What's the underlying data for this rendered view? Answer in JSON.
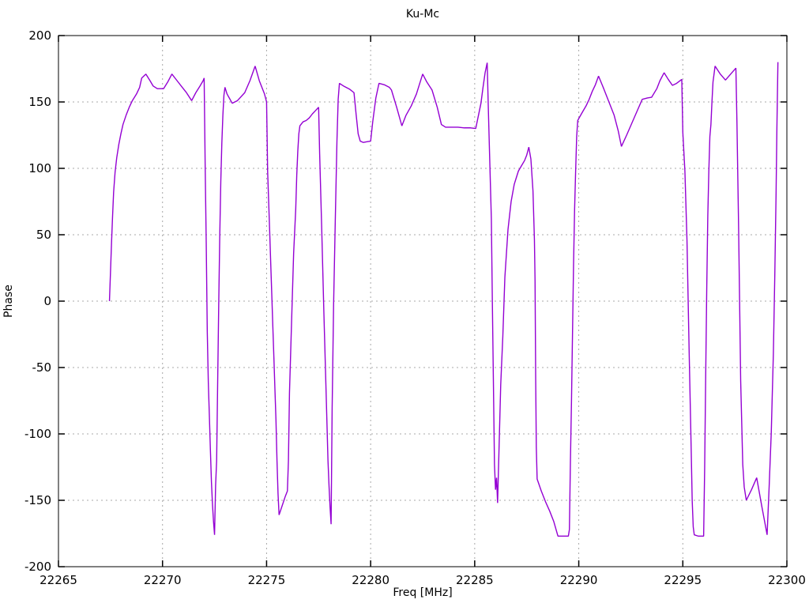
{
  "chart_data": {
    "type": "line",
    "title": "Ku-Mc",
    "xlabel": "Freq [MHz]",
    "ylabel": "Phase",
    "xlim": [
      22265,
      22300
    ],
    "ylim": [
      -200,
      200
    ],
    "xticks": [
      22265,
      22270,
      22275,
      22280,
      22285,
      22290,
      22295,
      22300
    ],
    "yticks": [
      -200,
      -150,
      -100,
      -50,
      0,
      50,
      100,
      150,
      200
    ],
    "grid": true,
    "legend_position": "none",
    "line_color": "#9400d3",
    "grid_color": "#a8a8a8",
    "border_color": "#000000",
    "series": [
      {
        "name": "Ku-Mc",
        "points": [
          [
            22267.45,
            0
          ],
          [
            22267.5,
            22
          ],
          [
            22267.55,
            44
          ],
          [
            22267.6,
            64
          ],
          [
            22267.65,
            82
          ],
          [
            22267.72,
            97
          ],
          [
            22267.8,
            108
          ],
          [
            22267.9,
            118
          ],
          [
            22268.0,
            126
          ],
          [
            22268.1,
            133
          ],
          [
            22268.25,
            140
          ],
          [
            22268.4,
            146
          ],
          [
            22268.55,
            151
          ],
          [
            22268.75,
            156
          ],
          [
            22268.9,
            161
          ],
          [
            22269.0,
            168
          ],
          [
            22269.2,
            171
          ],
          [
            22269.4,
            166
          ],
          [
            22269.55,
            162
          ],
          [
            22269.75,
            160
          ],
          [
            22270.05,
            160
          ],
          [
            22270.25,
            165
          ],
          [
            22270.45,
            171
          ],
          [
            22270.7,
            166
          ],
          [
            22270.95,
            161
          ],
          [
            22271.15,
            157
          ],
          [
            22271.4,
            151
          ],
          [
            22271.6,
            157
          ],
          [
            22271.8,
            162
          ],
          [
            22271.95,
            166
          ],
          [
            22272.0,
            168
          ],
          [
            22272.05,
            101
          ],
          [
            22272.1,
            44
          ],
          [
            22272.15,
            -23
          ],
          [
            22272.2,
            -61
          ],
          [
            22272.25,
            -86
          ],
          [
            22272.3,
            -112
          ],
          [
            22272.35,
            -136
          ],
          [
            22272.4,
            -153
          ],
          [
            22272.45,
            -166
          ],
          [
            22272.5,
            -176
          ],
          [
            22272.55,
            -139
          ],
          [
            22272.6,
            -120
          ],
          [
            22272.65,
            -61
          ],
          [
            22272.7,
            -3
          ],
          [
            22272.75,
            49
          ],
          [
            22272.8,
            90
          ],
          [
            22272.85,
            119
          ],
          [
            22272.9,
            140
          ],
          [
            22272.95,
            155
          ],
          [
            22273.0,
            161
          ],
          [
            22273.1,
            156
          ],
          [
            22273.35,
            149
          ],
          [
            22273.6,
            151
          ],
          [
            22273.95,
            157
          ],
          [
            22274.2,
            166
          ],
          [
            22274.45,
            177
          ],
          [
            22274.65,
            166
          ],
          [
            22274.9,
            156
          ],
          [
            22275.0,
            150
          ],
          [
            22275.05,
            98
          ],
          [
            22275.1,
            75
          ],
          [
            22275.15,
            52
          ],
          [
            22275.2,
            28
          ],
          [
            22275.25,
            5
          ],
          [
            22275.3,
            -19
          ],
          [
            22275.35,
            -42
          ],
          [
            22275.4,
            -66
          ],
          [
            22275.45,
            -89
          ],
          [
            22275.5,
            -120
          ],
          [
            22275.55,
            -145
          ],
          [
            22275.6,
            -161
          ],
          [
            22275.75,
            -154
          ],
          [
            22275.9,
            -147
          ],
          [
            22276.0,
            -143
          ],
          [
            22276.05,
            -120
          ],
          [
            22276.1,
            -69
          ],
          [
            22276.2,
            -16
          ],
          [
            22276.3,
            36
          ],
          [
            22276.4,
            69
          ],
          [
            22276.45,
            95
          ],
          [
            22276.5,
            113
          ],
          [
            22276.55,
            126
          ],
          [
            22276.6,
            132
          ],
          [
            22276.75,
            135
          ],
          [
            22276.9,
            136
          ],
          [
            22277.05,
            138
          ],
          [
            22277.2,
            141
          ],
          [
            22277.35,
            143.5
          ],
          [
            22277.5,
            146
          ],
          [
            22277.55,
            111
          ],
          [
            22277.65,
            54
          ],
          [
            22277.75,
            -7
          ],
          [
            22277.85,
            -63
          ],
          [
            22277.95,
            -120
          ],
          [
            22278.0,
            -139
          ],
          [
            22278.05,
            -155
          ],
          [
            22278.1,
            -168
          ],
          [
            22278.15,
            -81
          ],
          [
            22278.22,
            -3
          ],
          [
            22278.3,
            60
          ],
          [
            22278.38,
            120
          ],
          [
            22278.44,
            152
          ],
          [
            22278.5,
            164
          ],
          [
            22278.7,
            162
          ],
          [
            22279.0,
            159.5
          ],
          [
            22279.2,
            157
          ],
          [
            22279.3,
            141
          ],
          [
            22279.4,
            126
          ],
          [
            22279.5,
            120.5
          ],
          [
            22279.65,
            119.5
          ],
          [
            22279.8,
            120
          ],
          [
            22280.0,
            120.5
          ],
          [
            22280.1,
            135
          ],
          [
            22280.25,
            153
          ],
          [
            22280.4,
            164
          ],
          [
            22280.65,
            163
          ],
          [
            22280.9,
            161
          ],
          [
            22281.0,
            159
          ],
          [
            22281.25,
            146
          ],
          [
            22281.5,
            132
          ],
          [
            22281.7,
            140
          ],
          [
            22281.95,
            147
          ],
          [
            22282.2,
            156
          ],
          [
            22282.5,
            171
          ],
          [
            22282.7,
            165
          ],
          [
            22282.95,
            159
          ],
          [
            22283.2,
            146
          ],
          [
            22283.4,
            133
          ],
          [
            22283.6,
            131
          ],
          [
            22283.9,
            131
          ],
          [
            22284.2,
            131
          ],
          [
            22284.5,
            130.5
          ],
          [
            22284.8,
            130.5
          ],
          [
            22285.05,
            130
          ],
          [
            22285.3,
            149
          ],
          [
            22285.4,
            161
          ],
          [
            22285.5,
            172
          ],
          [
            22285.6,
            179.5
          ],
          [
            22285.65,
            148
          ],
          [
            22285.7,
            119
          ],
          [
            22285.8,
            62
          ],
          [
            22285.85,
            -3
          ],
          [
            22285.9,
            -63
          ],
          [
            22285.95,
            -123
          ],
          [
            22286.0,
            -142
          ],
          [
            22286.05,
            -133
          ],
          [
            22286.1,
            -152
          ],
          [
            22286.25,
            -63
          ],
          [
            22286.35,
            -27
          ],
          [
            22286.45,
            18
          ],
          [
            22286.6,
            54
          ],
          [
            22286.75,
            75
          ],
          [
            22286.9,
            88
          ],
          [
            22287.0,
            93
          ],
          [
            22287.1,
            98
          ],
          [
            22287.25,
            102
          ],
          [
            22287.4,
            106
          ],
          [
            22287.5,
            110
          ],
          [
            22287.6,
            116
          ],
          [
            22287.7,
            107
          ],
          [
            22287.8,
            83
          ],
          [
            22287.87,
            46
          ],
          [
            22287.9,
            15
          ],
          [
            22287.93,
            -58
          ],
          [
            22287.96,
            -110
          ],
          [
            22288.0,
            -134
          ],
          [
            22288.2,
            -143
          ],
          [
            22288.4,
            -151
          ],
          [
            22288.6,
            -158
          ],
          [
            22288.8,
            -166
          ],
          [
            22289.0,
            -177
          ],
          [
            22289.25,
            -177
          ],
          [
            22289.5,
            -177
          ],
          [
            22289.55,
            -172
          ],
          [
            22289.6,
            -120
          ],
          [
            22289.65,
            -76
          ],
          [
            22289.7,
            -24
          ],
          [
            22289.75,
            28
          ],
          [
            22289.8,
            69
          ],
          [
            22289.85,
            98
          ],
          [
            22289.9,
            124
          ],
          [
            22289.95,
            136
          ],
          [
            22290.0,
            137.5
          ],
          [
            22290.2,
            143
          ],
          [
            22290.35,
            147
          ],
          [
            22290.5,
            152
          ],
          [
            22290.65,
            158
          ],
          [
            22290.8,
            163
          ],
          [
            22290.95,
            169.5
          ],
          [
            22291.2,
            160
          ],
          [
            22291.45,
            150
          ],
          [
            22291.7,
            140
          ],
          [
            22291.9,
            128
          ],
          [
            22292.05,
            116.5
          ],
          [
            22292.3,
            125
          ],
          [
            22292.55,
            134
          ],
          [
            22292.8,
            143
          ],
          [
            22293.05,
            152
          ],
          [
            22293.3,
            153
          ],
          [
            22293.5,
            153.5
          ],
          [
            22293.75,
            160
          ],
          [
            22293.9,
            166
          ],
          [
            22294.1,
            172
          ],
          [
            22294.3,
            167
          ],
          [
            22294.5,
            162.5
          ],
          [
            22294.7,
            164
          ],
          [
            22294.95,
            167
          ],
          [
            22295.0,
            127
          ],
          [
            22295.1,
            98
          ],
          [
            22295.2,
            46
          ],
          [
            22295.3,
            -35
          ],
          [
            22295.4,
            -110
          ],
          [
            22295.45,
            -150
          ],
          [
            22295.5,
            -170
          ],
          [
            22295.55,
            -176
          ],
          [
            22295.75,
            -177
          ],
          [
            22296.0,
            -177
          ],
          [
            22296.05,
            -125
          ],
          [
            22296.1,
            -55
          ],
          [
            22296.15,
            10
          ],
          [
            22296.2,
            64
          ],
          [
            22296.25,
            98
          ],
          [
            22296.3,
            124
          ],
          [
            22296.35,
            133
          ],
          [
            22296.4,
            150
          ],
          [
            22296.45,
            165
          ],
          [
            22296.55,
            177
          ],
          [
            22296.8,
            171
          ],
          [
            22297.05,
            166.5
          ],
          [
            22297.3,
            171
          ],
          [
            22297.55,
            175.5
          ],
          [
            22297.6,
            135
          ],
          [
            22297.68,
            56
          ],
          [
            22297.78,
            -60
          ],
          [
            22297.88,
            -123
          ],
          [
            22297.95,
            -140
          ],
          [
            22298.05,
            -150
          ],
          [
            22298.3,
            -142
          ],
          [
            22298.55,
            -133
          ],
          [
            22298.8,
            -155
          ],
          [
            22299.05,
            -176
          ],
          [
            22299.15,
            -139
          ],
          [
            22299.25,
            -99
          ],
          [
            22299.35,
            -40
          ],
          [
            22299.42,
            20
          ],
          [
            22299.48,
            80
          ],
          [
            22299.52,
            130
          ],
          [
            22299.57,
            180
          ]
        ]
      }
    ]
  }
}
